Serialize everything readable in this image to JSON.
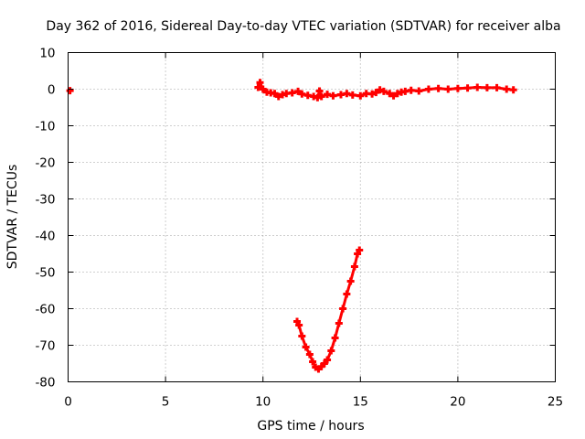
{
  "chart_data": {
    "type": "scatter",
    "title": "Day 362 of 2016, Sidereal Day-to-day VTEC variation (SDTVAR) for receiver alba",
    "xlabel": "GPS time / hours",
    "ylabel": "SDTVAR / TECUs",
    "xlim": [
      0,
      25
    ],
    "ylim": [
      -80,
      10
    ],
    "xticks": [
      0,
      5,
      10,
      15,
      20,
      25
    ],
    "yticks": [
      10,
      0,
      -10,
      -20,
      -30,
      -40,
      -50,
      -60,
      -70,
      -80
    ],
    "grid": true,
    "marker": "plus",
    "color": "#ff0000",
    "series": [
      {
        "name": "isolated point",
        "points": [
          [
            0.1,
            -0.4
          ]
        ]
      },
      {
        "name": "track 1",
        "points": [
          [
            9.75,
            0.5
          ],
          [
            9.85,
            1.8
          ],
          [
            10.0,
            0.0
          ],
          [
            10.2,
            -0.8
          ],
          [
            10.4,
            -1.0
          ],
          [
            10.6,
            -1.2
          ],
          [
            10.8,
            -2.0
          ],
          [
            11.0,
            -1.5
          ],
          [
            11.2,
            -1.2
          ],
          [
            11.5,
            -1.0
          ],
          [
            11.8,
            -0.6
          ],
          [
            12.0,
            -1.3
          ],
          [
            12.3,
            -1.7
          ],
          [
            12.6,
            -2.0
          ],
          [
            12.8,
            -2.3
          ],
          [
            12.9,
            -0.5
          ],
          [
            13.0,
            -2.0
          ],
          [
            13.3,
            -1.4
          ],
          [
            13.6,
            -1.8
          ],
          [
            14.0,
            -1.5
          ],
          [
            14.3,
            -1.2
          ],
          [
            14.6,
            -1.6
          ],
          [
            15.0,
            -1.8
          ],
          [
            15.3,
            -1.2
          ],
          [
            15.6,
            -1.3
          ],
          [
            15.8,
            -0.9
          ],
          [
            16.0,
            -0.2
          ],
          [
            16.2,
            -0.6
          ],
          [
            16.5,
            -1.2
          ],
          [
            16.7,
            -1.8
          ],
          [
            16.9,
            -1.2
          ],
          [
            17.1,
            -0.8
          ],
          [
            17.3,
            -0.6
          ],
          [
            17.6,
            -0.3
          ],
          [
            18.0,
            -0.5
          ],
          [
            18.5,
            0.0
          ],
          [
            19.0,
            0.2
          ],
          [
            19.5,
            0.0
          ],
          [
            20.0,
            0.2
          ],
          [
            20.5,
            0.3
          ],
          [
            21.0,
            0.5
          ],
          [
            21.5,
            0.4
          ],
          [
            22.0,
            0.4
          ],
          [
            22.5,
            0.0
          ],
          [
            22.85,
            -0.2
          ]
        ]
      },
      {
        "name": "track 2",
        "points": [
          [
            11.75,
            -63.5
          ],
          [
            11.85,
            -64.5
          ],
          [
            12.0,
            -67.5
          ],
          [
            12.2,
            -70.5
          ],
          [
            12.4,
            -72.5
          ],
          [
            12.55,
            -74.5
          ],
          [
            12.7,
            -76.0
          ],
          [
            12.85,
            -76.5
          ],
          [
            13.0,
            -75.8
          ],
          [
            13.15,
            -75.0
          ],
          [
            13.3,
            -74.0
          ],
          [
            13.5,
            -71.5
          ],
          [
            13.7,
            -68.0
          ],
          [
            13.9,
            -64.0
          ],
          [
            14.1,
            -60.0
          ],
          [
            14.3,
            -56.0
          ],
          [
            14.5,
            -52.5
          ],
          [
            14.7,
            -48.5
          ],
          [
            14.85,
            -45.0
          ],
          [
            14.95,
            -44.0
          ]
        ]
      }
    ]
  }
}
